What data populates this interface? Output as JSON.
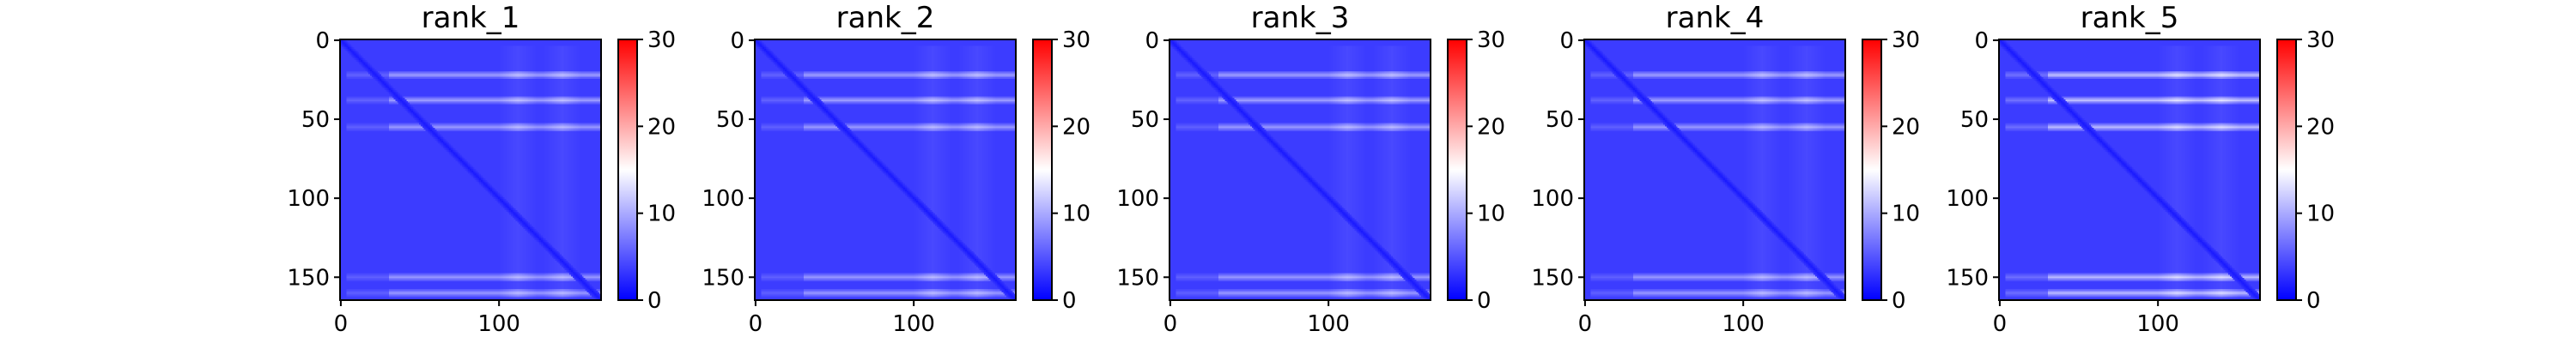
{
  "chart_data": {
    "type": "heatmap",
    "colormap": "bwr",
    "colors": {
      "low": "#0000ff",
      "mid": "#ffffff",
      "high": "#ff0000"
    },
    "vmin": 0,
    "vmax": 30,
    "matrix_size": 165,
    "colorbar_ticks": [
      0,
      10,
      20,
      30
    ],
    "y_ticks": [
      0,
      50,
      100,
      150
    ],
    "x_ticks": [
      0,
      100
    ],
    "panels": [
      {
        "title": "rank_1",
        "banded_rows": [
          22,
          38,
          55,
          150,
          160
        ],
        "bright_cols": [
          112,
          140
        ],
        "base_value": 3.5,
        "diagonal_value": 1.5,
        "band_value": 9
      },
      {
        "title": "rank_2",
        "banded_rows": [
          22,
          38,
          55,
          150,
          160
        ],
        "bright_cols": [
          112,
          140
        ],
        "base_value": 3.5,
        "diagonal_value": 1.5,
        "band_value": 9
      },
      {
        "title": "rank_3",
        "banded_rows": [
          22,
          38,
          55,
          150,
          160
        ],
        "bright_cols": [
          112,
          140
        ],
        "base_value": 3.5,
        "diagonal_value": 1.5,
        "band_value": 9
      },
      {
        "title": "rank_4",
        "banded_rows": [
          22,
          38,
          55,
          150,
          160
        ],
        "bright_cols": [
          112,
          140
        ],
        "base_value": 3.5,
        "diagonal_value": 1.5,
        "band_value": 9
      },
      {
        "title": "rank_5",
        "banded_rows": [
          22,
          38,
          55,
          150,
          160
        ],
        "bright_cols": [
          112,
          140
        ],
        "base_value": 3.5,
        "diagonal_value": 1.5,
        "band_value": 11
      }
    ]
  }
}
